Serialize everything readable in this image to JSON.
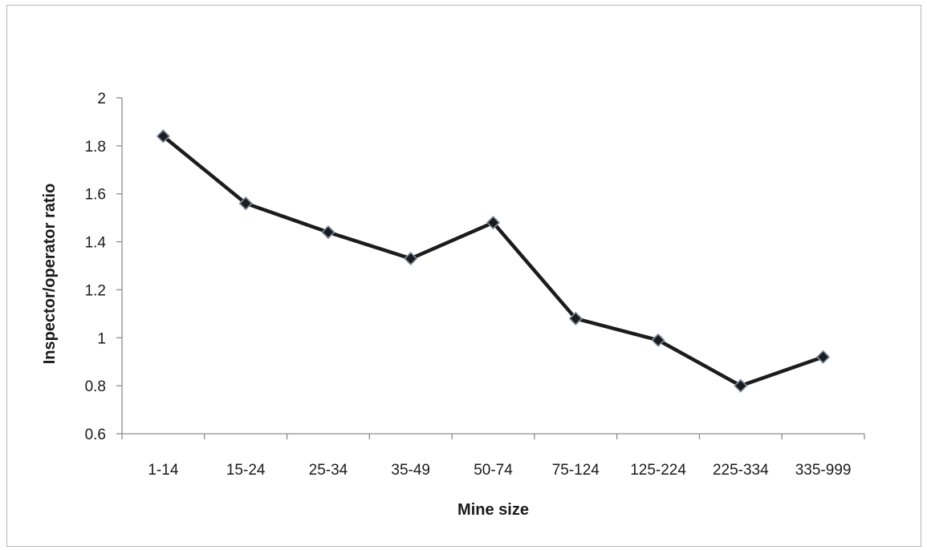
{
  "chart_data": {
    "type": "line",
    "title": "",
    "xlabel": "Mine size",
    "ylabel": "Inspector/operator ratio",
    "categories": [
      "1-14",
      "15-24",
      "25-34",
      "35-49",
      "50-74",
      "75-124",
      "125-224",
      "225-334",
      "335-999"
    ],
    "values": [
      1.84,
      1.56,
      1.44,
      1.33,
      1.48,
      1.08,
      0.99,
      0.8,
      0.92
    ],
    "ylim": [
      0.6,
      2
    ],
    "yticks": [
      "0.6",
      "0.8",
      "1",
      "1.2",
      "1.4",
      "1.6",
      "1.8",
      "2"
    ],
    "grid": false,
    "legend": "none",
    "line_color": "#1c1c1c",
    "marker_color": "#1c1c1c",
    "marker_shape": "diamond"
  }
}
